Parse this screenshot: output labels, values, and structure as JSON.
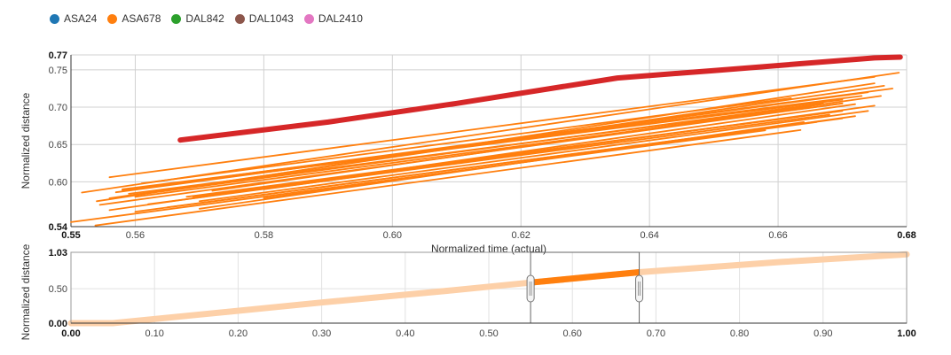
{
  "chart_data": [
    {
      "type": "line",
      "xlabel": "Normalized time (actual)",
      "ylabel": "Normalized distance",
      "xlim": [
        0.55,
        0.68
      ],
      "ylim": [
        0.54,
        0.77
      ],
      "x_ticks": [
        "0.55",
        "0.56",
        "0.58",
        "0.60",
        "0.62",
        "0.64",
        "0.66",
        "0.68"
      ],
      "y_ticks": [
        "0.54",
        "0.60",
        "0.65",
        "0.70",
        "0.75",
        "0.77"
      ],
      "grid": true,
      "legend_position": "top-left",
      "series": [
        {
          "name": "ASA24",
          "color": "#1f77b4",
          "lines": []
        },
        {
          "name": "ASA678",
          "color": "#ff7f0e",
          "lines": [
            [
              [
                0.5517,
                0.5857
              ],
              [
                0.6788,
                0.7462
              ]
            ],
            [
              [
                0.556,
                0.6062
              ],
              [
                0.675,
                0.7406
              ]
            ],
            [
              [
                0.554,
                0.574
              ],
              [
                0.675,
                0.732
              ]
            ],
            [
              [
                0.558,
                0.589
              ],
              [
                0.6778,
                0.725
              ]
            ],
            [
              [
                0.556,
                0.578
              ],
              [
                0.6765,
                0.7286
              ]
            ],
            [
              [
                0.557,
                0.586
              ],
              [
                0.674,
                0.72
              ]
            ],
            [
              [
                0.558,
                0.59
              ],
              [
                0.673,
                0.715
              ]
            ],
            [
              [
                0.56,
                0.591
              ],
              [
                0.67,
                0.71
              ]
            ],
            [
              [
                0.5545,
                0.5692
              ],
              [
                0.67,
                0.705
              ]
            ],
            [
              [
                0.56,
                0.58
              ],
              [
                0.67,
                0.705
              ]
            ],
            [
              [
                0.559,
                0.584
              ],
              [
                0.665,
                0.701
              ]
            ],
            [
              [
                0.564,
                0.587
              ],
              [
                0.667,
                0.705
              ]
            ],
            [
              [
                0.556,
                0.562
              ],
              [
                0.672,
                0.704
              ]
            ],
            [
              [
                0.58,
                0.59
              ],
              [
                0.675,
                0.702
              ]
            ],
            [
              [
                0.568,
                0.58
              ],
              [
                0.669,
                0.694
              ]
            ],
            [
              [
                0.562,
                0.57
              ],
              [
                0.668,
                0.69
              ]
            ],
            [
              [
                0.57,
                0.574
              ],
              [
                0.674,
                0.695
              ]
            ],
            [
              [
                0.56,
                0.56
              ],
              [
                0.67,
                0.685
              ]
            ],
            [
              [
                0.55,
                0.546
              ],
              [
                0.658,
                0.669
              ]
            ],
            [
              [
                0.5538,
                0.5416
              ],
              [
                0.6635,
                0.6693
              ]
            ],
            [
              [
                0.57,
                0.564
              ],
              [
                0.664,
                0.68
              ]
            ],
            [
              [
                0.58,
                0.578
              ],
              [
                0.672,
                0.688
              ]
            ],
            [
              [
                0.565,
                0.566
              ],
              [
                0.666,
                0.68
              ]
            ],
            [
              [
                0.569,
                0.58
              ],
              [
                0.67,
                0.695
              ]
            ],
            [
              [
                0.572,
                0.588
              ],
              [
                0.676,
                0.715
              ]
            ],
            [
              [
                0.561,
                0.598
              ],
              [
                0.662,
                0.712
              ]
            ]
          ]
        },
        {
          "name": "DAL842",
          "color": "#2ca02c",
          "lines": []
        },
        {
          "name": "DAL1043",
          "color": "#8c564b",
          "lines": []
        },
        {
          "name": "DAL2410",
          "color": "#e377c2",
          "lines": []
        },
        {
          "name": "",
          "color": "#d62728",
          "lines": [
            [
              [
                0.567,
                0.656
              ],
              [
                0.59,
                0.68
              ],
              [
                0.61,
                0.705
              ],
              [
                0.635,
                0.739
              ],
              [
                0.65,
                0.749
              ],
              [
                0.675,
                0.766
              ],
              [
                0.679,
                0.767
              ]
            ]
          ]
        }
      ]
    },
    {
      "type": "area",
      "ylabel": "Normalized distance",
      "xlim": [
        0.0,
        1.0
      ],
      "ylim": [
        0.0,
        1.03
      ],
      "x_ticks": [
        "0.00",
        "0.10",
        "0.20",
        "0.30",
        "0.40",
        "0.50",
        "0.60",
        "0.70",
        "0.80",
        "0.90",
        "1.00"
      ],
      "y_ticks": [
        "0.00",
        "0.50",
        "1.03"
      ],
      "brush_range": [
        0.55,
        0.68
      ],
      "overview_band": [
        [
          0.0,
          0.0
        ],
        [
          0.05,
          0.0
        ],
        [
          0.15,
          0.12
        ],
        [
          0.3,
          0.3
        ],
        [
          0.45,
          0.47
        ],
        [
          0.55,
          0.59
        ],
        [
          0.68,
          0.74
        ],
        [
          0.85,
          0.89
        ],
        [
          1.0,
          1.0
        ]
      ]
    }
  ]
}
